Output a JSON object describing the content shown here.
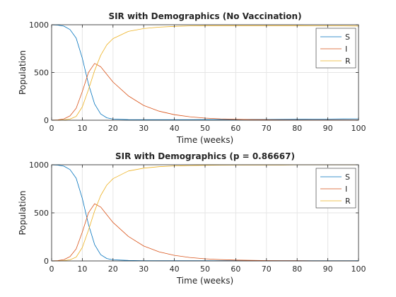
{
  "chart_data": [
    {
      "type": "line",
      "title": "SIR with Demographics (No Vaccination)",
      "xlabel": "Time (weeks)",
      "ylabel": "Population",
      "xlim": [
        0,
        100
      ],
      "ylim": [
        0,
        1000
      ],
      "xticks": [
        0,
        10,
        20,
        30,
        40,
        50,
        60,
        70,
        80,
        90,
        100
      ],
      "yticks": [
        0,
        500,
        1000
      ],
      "grid": true,
      "legend_position": "top-right",
      "x": [
        0,
        2,
        4,
        6,
        8,
        10,
        12,
        14,
        16,
        18,
        20,
        25,
        30,
        35,
        40,
        45,
        50,
        55,
        60,
        65,
        70,
        75,
        80,
        85,
        90,
        95,
        100
      ],
      "series": [
        {
          "name": "S",
          "color": "#0072BD",
          "values": [
            999,
            996,
            985,
            950,
            860,
            650,
            380,
            170,
            65,
            25,
            12,
            6,
            5,
            5,
            5,
            5,
            6,
            6,
            7,
            8,
            8,
            9,
            10,
            11,
            12,
            13,
            14
          ]
        },
        {
          "name": "I",
          "color": "#D95319",
          "values": [
            1,
            4,
            14,
            45,
            125,
            300,
            500,
            595,
            560,
            480,
            400,
            255,
            155,
            95,
            58,
            36,
            22,
            14,
            10,
            7,
            5,
            4,
            3,
            3,
            3,
            3,
            3
          ]
        },
        {
          "name": "R",
          "color": "#EDB120",
          "values": [
            0,
            1,
            4,
            12,
            40,
            140,
            320,
            520,
            680,
            790,
            855,
            930,
            960,
            975,
            983,
            988,
            990,
            990,
            990,
            990,
            990,
            990,
            990,
            989,
            989,
            988,
            987
          ]
        }
      ]
    },
    {
      "type": "line",
      "title": "SIR with Demographics (p = 0.86667)",
      "xlabel": "Time (weeks)",
      "ylabel": "Population",
      "xlim": [
        0,
        100
      ],
      "ylim": [
        0,
        1000
      ],
      "xticks": [
        0,
        10,
        20,
        30,
        40,
        50,
        60,
        70,
        80,
        90,
        100
      ],
      "yticks": [
        0,
        500,
        1000
      ],
      "grid": true,
      "legend_position": "top-right",
      "x": [
        0,
        2,
        4,
        6,
        8,
        10,
        12,
        14,
        16,
        18,
        20,
        25,
        30,
        35,
        40,
        45,
        50,
        55,
        60,
        65,
        70,
        75,
        80,
        85,
        90,
        95,
        100
      ],
      "series": [
        {
          "name": "S",
          "color": "#0072BD",
          "values": [
            999,
            996,
            985,
            950,
            860,
            650,
            380,
            170,
            65,
            25,
            12,
            5,
            3,
            2,
            2,
            2,
            2,
            2,
            2,
            2,
            2,
            2,
            2,
            2,
            2,
            2,
            2
          ]
        },
        {
          "name": "I",
          "color": "#D95319",
          "values": [
            1,
            4,
            14,
            45,
            125,
            300,
            500,
            595,
            560,
            480,
            400,
            255,
            155,
            95,
            58,
            36,
            22,
            14,
            9,
            6,
            4,
            3,
            2,
            1,
            1,
            1,
            0
          ]
        },
        {
          "name": "R",
          "color": "#EDB120",
          "values": [
            0,
            1,
            4,
            12,
            40,
            140,
            320,
            520,
            680,
            790,
            855,
            935,
            965,
            980,
            988,
            992,
            995,
            996,
            997,
            998,
            998,
            998,
            999,
            999,
            999,
            999,
            999
          ]
        }
      ]
    }
  ]
}
